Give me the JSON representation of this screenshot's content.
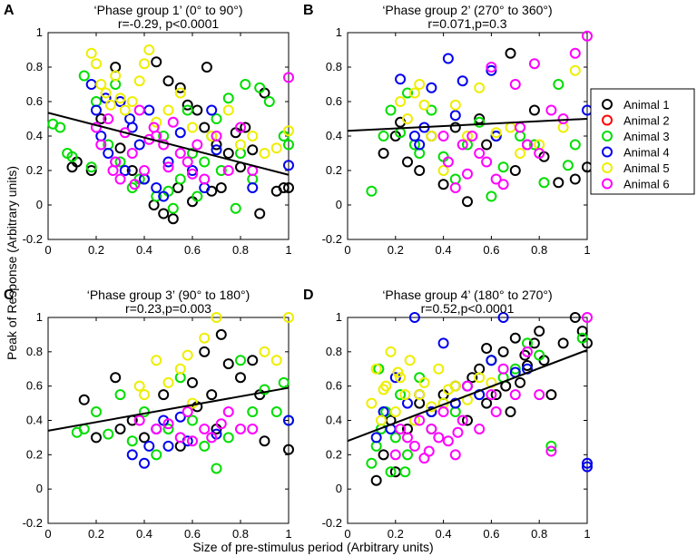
{
  "figure": {
    "ylabel": "Peak of Response (Arbitrary units)",
    "xlabel": "Size of pre-stimulus period (Arbitrary units)"
  },
  "legend": {
    "entries": [
      {
        "label": "Animal 1",
        "color": "#000000"
      },
      {
        "label": "Animal 2",
        "color": "#ff0000"
      },
      {
        "label": "Animal 3",
        "color": "#00dd00"
      },
      {
        "label": "Animal 4",
        "color": "#0000ee"
      },
      {
        "label": "Animal 5",
        "color": "#eeee00"
      },
      {
        "label": "Animal 6",
        "color": "#ff00ff"
      }
    ]
  },
  "chart_data": [
    {
      "type": "scatter",
      "letter": "A",
      "title": "‘Phase group 1’ (0° to 90°)",
      "stat": "r=-0.29, p<0.0001",
      "xlim": [
        0,
        1
      ],
      "ylim": [
        -0.2,
        1
      ],
      "xticks": [
        "0",
        "0.2",
        "0.4",
        "0.6",
        "0.8",
        "1"
      ],
      "yticks": [
        "-0.2",
        "0",
        "0.2",
        "0.4",
        "0.6",
        "0.8",
        "1"
      ],
      "fit": {
        "slope": -0.36,
        "intercept": 0.535
      },
      "series": [
        {
          "name": "Animal 1",
          "x": [
            0.45,
            0.5,
            0.55,
            0.58,
            0.62,
            0.65,
            0.7,
            0.75,
            0.78,
            0.82,
            0.85,
            0.9,
            0.95,
            0.98,
            1.0,
            0.4,
            0.35,
            0.3,
            0.28,
            0.22,
            0.18,
            0.1,
            0.12,
            0.48,
            0.52,
            0.6,
            0.68,
            0.72,
            0.8,
            0.88,
            0.44,
            0.54,
            0.66
          ],
          "y": [
            0.83,
            0.72,
            0.68,
            0.58,
            0.55,
            0.45,
            0.35,
            0.3,
            0.42,
            0.45,
            0.32,
            0.65,
            0.08,
            0.1,
            0.1,
            0.15,
            0.2,
            0.33,
            0.8,
            0.5,
            0.2,
            0.22,
            0.25,
            -0.05,
            -0.08,
            0.02,
            0.08,
            0.1,
            0.22,
            -0.05,
            0.0,
            0.1,
            0.8
          ]
        },
        {
          "name": "Animal 3",
          "x": [
            0.02,
            0.05,
            0.08,
            0.1,
            0.15,
            0.2,
            0.25,
            0.3,
            0.35,
            0.45,
            0.5,
            0.55,
            0.6,
            0.65,
            0.7,
            0.75,
            0.8,
            0.85,
            0.88,
            0.92,
            0.98,
            1.0,
            0.18,
            0.28,
            0.4,
            0.58,
            0.62,
            0.68,
            0.72,
            0.78,
            0.82,
            0.48,
            0.38,
            0.52
          ],
          "y": [
            0.47,
            0.45,
            0.3,
            0.28,
            0.75,
            0.6,
            0.35,
            0.25,
            0.1,
            0.05,
            0.08,
            0.15,
            0.3,
            0.25,
            0.5,
            0.62,
            0.3,
            0.15,
            0.68,
            0.6,
            0.4,
            0.35,
            0.22,
            0.7,
            0.15,
            0.55,
            0.05,
            0.4,
            0.2,
            -0.02,
            0.7,
            0.4,
            0.15,
            -0.02
          ]
        },
        {
          "name": "Animal 4",
          "x": [
            0.18,
            0.2,
            0.22,
            0.25,
            0.28,
            0.3,
            0.32,
            0.35,
            0.38,
            0.4,
            0.42,
            0.45,
            0.48,
            0.5,
            0.55,
            0.6,
            0.65,
            0.68,
            0.7,
            0.85,
            1.0,
            0.24,
            0.34
          ],
          "y": [
            0.7,
            0.55,
            0.4,
            0.3,
            0.25,
            0.6,
            0.2,
            0.45,
            0.35,
            0.15,
            0.55,
            0.1,
            0.05,
            0.25,
            0.42,
            0.2,
            0.1,
            0.55,
            0.32,
            0.1,
            0.23,
            0.62,
            0.5
          ]
        },
        {
          "name": "Animal 5",
          "x": [
            0.18,
            0.2,
            0.22,
            0.24,
            0.26,
            0.28,
            0.3,
            0.32,
            0.35,
            0.38,
            0.4,
            0.45,
            0.5,
            0.55,
            0.6,
            0.68,
            0.75,
            0.8,
            0.85,
            0.9,
            0.95,
            1.0,
            0.42
          ],
          "y": [
            0.88,
            0.82,
            0.7,
            0.65,
            0.58,
            0.75,
            0.62,
            0.55,
            0.6,
            0.72,
            0.82,
            0.48,
            0.55,
            0.65,
            0.45,
            0.4,
            0.55,
            0.35,
            0.4,
            0.3,
            0.33,
            0.43,
            0.9
          ]
        },
        {
          "name": "Animal 6",
          "x": [
            0.2,
            0.22,
            0.25,
            0.28,
            0.3,
            0.32,
            0.35,
            0.38,
            0.4,
            0.42,
            0.45,
            0.48,
            0.5,
            0.52,
            0.55,
            0.58,
            0.6,
            0.62,
            0.65,
            0.7,
            0.75,
            0.8,
            0.85,
            1.0,
            0.27,
            0.36,
            0.44
          ],
          "y": [
            0.45,
            0.35,
            0.5,
            0.25,
            0.15,
            0.42,
            0.3,
            0.55,
            0.2,
            0.38,
            0.4,
            0.35,
            0.22,
            0.48,
            0.3,
            0.25,
            0.18,
            0.35,
            0.15,
            0.4,
            0.2,
            0.45,
            0.2,
            0.74,
            0.2,
            0.12,
            0.45
          ]
        }
      ]
    },
    {
      "type": "scatter",
      "letter": "B",
      "title": "‘Phase group 2’ (270° to 360°)",
      "stat": "r=0.071,p=0.3",
      "xlim": [
        0,
        1
      ],
      "ylim": [
        -0.2,
        1
      ],
      "xticks": [
        "0",
        "0.2",
        "0.4",
        "0.6",
        "0.8",
        "1"
      ],
      "yticks": [
        "-0.2",
        "0",
        "0.2",
        "0.4",
        "0.6",
        "0.8",
        "1"
      ],
      "fit": {
        "slope": 0.07,
        "intercept": 0.43
      },
      "series": [
        {
          "name": "Animal 1",
          "x": [
            0.15,
            0.2,
            0.22,
            0.25,
            0.3,
            0.35,
            0.4,
            0.45,
            0.5,
            0.55,
            0.58,
            0.62,
            0.68,
            0.7,
            0.75,
            0.78,
            0.82,
            0.88,
            0.95,
            1.0
          ],
          "y": [
            0.3,
            0.4,
            0.48,
            0.25,
            0.2,
            0.4,
            0.12,
            0.45,
            0.02,
            0.5,
            0.35,
            0.4,
            0.88,
            0.2,
            0.35,
            0.55,
            0.28,
            0.13,
            0.15,
            0.22
          ]
        },
        {
          "name": "Animal 3",
          "x": [
            0.1,
            0.15,
            0.18,
            0.22,
            0.25,
            0.28,
            0.3,
            0.35,
            0.4,
            0.45,
            0.5,
            0.55,
            0.6,
            0.65,
            0.72,
            0.78,
            0.82,
            0.88,
            0.92,
            0.95
          ],
          "y": [
            0.08,
            0.4,
            0.55,
            0.42,
            0.65,
            0.35,
            0.3,
            0.55,
            0.28,
            0.15,
            0.35,
            0.48,
            0.05,
            0.22,
            0.4,
            0.35,
            0.13,
            0.7,
            0.23,
            0.35
          ]
        },
        {
          "name": "Animal 4",
          "x": [
            0.22,
            0.28,
            0.3,
            0.32,
            0.35,
            0.42,
            0.45,
            0.48,
            0.6,
            0.62,
            1.0
          ],
          "y": [
            0.73,
            0.4,
            0.35,
            0.45,
            0.68,
            0.85,
            0.52,
            0.72,
            0.78,
            0.4,
            0.55
          ]
        },
        {
          "name": "Animal 5",
          "x": [
            0.22,
            0.25,
            0.28,
            0.3,
            0.32,
            0.35,
            0.4,
            0.45,
            0.5,
            0.55,
            0.62,
            0.68,
            0.72,
            0.8,
            0.9,
            0.95
          ],
          "y": [
            0.6,
            0.5,
            0.65,
            0.7,
            0.58,
            0.4,
            0.2,
            0.58,
            0.4,
            0.68,
            0.42,
            0.45,
            0.3,
            0.35,
            0.45,
            0.78
          ]
        },
        {
          "name": "Animal 6",
          "x": [
            0.4,
            0.42,
            0.45,
            0.48,
            0.5,
            0.52,
            0.55,
            0.58,
            0.6,
            0.62,
            0.65,
            0.7,
            0.72,
            0.75,
            0.78,
            0.8,
            0.85,
            0.9,
            0.95,
            1.0
          ],
          "y": [
            0.4,
            0.25,
            0.1,
            0.35,
            0.18,
            0.4,
            0.3,
            0.25,
            0.8,
            0.15,
            0.12,
            0.7,
            0.45,
            0.35,
            0.82,
            0.3,
            0.55,
            0.5,
            0.88,
            0.98
          ]
        }
      ]
    },
    {
      "type": "scatter",
      "letter": "C",
      "title": "‘Phase group 3’ (90° to 180°)",
      "stat": "r=0.23,p=0.003",
      "xlim": [
        0,
        1
      ],
      "ylim": [
        -0.2,
        1
      ],
      "xticks": [
        "0",
        "0.2",
        "0.4",
        "0.6",
        "0.8",
        "1"
      ],
      "yticks": [
        "-0.2",
        "0",
        "0.2",
        "0.4",
        "0.6",
        "0.8",
        "1"
      ],
      "fit": {
        "slope": 0.25,
        "intercept": 0.34
      },
      "series": [
        {
          "name": "Animal 1",
          "x": [
            0.15,
            0.2,
            0.28,
            0.3,
            0.35,
            0.4,
            0.48,
            0.55,
            0.6,
            0.62,
            0.65,
            0.68,
            0.7,
            0.72,
            0.75,
            0.8,
            0.85,
            0.88,
            0.9,
            1.0
          ],
          "y": [
            0.52,
            0.3,
            0.65,
            0.35,
            0.4,
            0.3,
            0.55,
            0.25,
            0.62,
            0.48,
            0.8,
            0.55,
            0.35,
            0.9,
            0.73,
            0.65,
            0.75,
            0.55,
            0.28,
            0.23
          ]
        },
        {
          "name": "Animal 3",
          "x": [
            0.12,
            0.15,
            0.2,
            0.25,
            0.3,
            0.35,
            0.4,
            0.45,
            0.5,
            0.55,
            0.6,
            0.65,
            0.7,
            0.75,
            0.8,
            0.85,
            0.9,
            0.95,
            0.98,
            1.0
          ],
          "y": [
            0.33,
            0.35,
            0.45,
            0.32,
            0.55,
            0.28,
            0.45,
            0.2,
            0.35,
            0.65,
            0.4,
            0.25,
            0.12,
            0.3,
            0.75,
            0.45,
            0.58,
            0.45,
            0.62,
            0.4
          ]
        },
        {
          "name": "Animal 4",
          "x": [
            0.35,
            0.4,
            0.42,
            0.45,
            0.48,
            0.5,
            0.55,
            0.58,
            0.7,
            1.0
          ],
          "y": [
            0.2,
            0.15,
            0.25,
            0.35,
            0.4,
            0.25,
            0.42,
            0.28,
            0.32,
            0.4
          ]
        },
        {
          "name": "Animal 5",
          "x": [
            0.38,
            0.4,
            0.45,
            0.5,
            0.55,
            0.58,
            0.6,
            0.65,
            0.7,
            0.9,
            0.95,
            1.0
          ],
          "y": [
            0.6,
            0.55,
            0.75,
            0.62,
            0.7,
            0.78,
            0.5,
            0.88,
            1.0,
            0.8,
            0.75,
            1.0
          ]
        },
        {
          "name": "Animal 6",
          "x": [
            0.38,
            0.45,
            0.5,
            0.55,
            0.58,
            0.6,
            0.65,
            0.68,
            0.72,
            0.75,
            0.8,
            0.85
          ],
          "y": [
            0.4,
            0.35,
            0.38,
            0.3,
            0.45,
            0.28,
            0.35,
            0.3,
            0.38,
            0.45,
            0.35,
            0.35
          ]
        }
      ]
    },
    {
      "type": "scatter",
      "letter": "D",
      "title": "‘Phase group 4’ (180° to 270°)",
      "stat": "r=0.52,p<0.0001",
      "xlim": [
        0,
        1
      ],
      "ylim": [
        -0.2,
        1
      ],
      "xticks": [
        "0",
        "0.2",
        "0.4",
        "0.6",
        "0.8",
        "1"
      ],
      "yticks": [
        "-0.2",
        "0",
        "0.2",
        "0.4",
        "0.6",
        "0.8",
        "1"
      ],
      "fit": {
        "slope": 0.53,
        "intercept": 0.28
      },
      "series": [
        {
          "name": "Animal 1",
          "x": [
            0.12,
            0.15,
            0.18,
            0.2,
            0.25,
            0.3,
            0.35,
            0.4,
            0.45,
            0.5,
            0.52,
            0.55,
            0.58,
            0.6,
            0.62,
            0.65,
            0.68,
            0.7,
            0.72,
            0.75,
            0.78,
            0.8,
            0.82,
            0.85,
            0.9,
            0.95,
            0.98,
            1.0,
            0.58,
            0.66,
            0.74
          ],
          "y": [
            0.05,
            0.2,
            0.4,
            0.1,
            0.35,
            0.5,
            0.45,
            0.55,
            0.6,
            0.4,
            0.65,
            0.7,
            0.5,
            0.75,
            0.55,
            0.8,
            0.45,
            0.88,
            0.62,
            0.72,
            0.85,
            0.92,
            0.75,
            0.55,
            0.85,
            1.0,
            0.92,
            0.85,
            0.82,
            0.6,
            0.78
          ]
        },
        {
          "name": "Animal 3",
          "x": [
            0.1,
            0.12,
            0.14,
            0.16,
            0.18,
            0.2,
            0.22,
            0.25,
            0.28,
            0.3,
            0.35,
            0.4,
            0.45,
            0.5,
            0.55,
            0.6,
            0.65,
            0.7,
            0.75,
            0.8,
            0.85,
            0.98,
            0.13,
            0.24
          ],
          "y": [
            0.15,
            0.25,
            0.35,
            0.45,
            0.1,
            0.3,
            0.55,
            0.2,
            0.4,
            0.65,
            0.35,
            0.5,
            0.45,
            0.6,
            0.55,
            0.75,
            0.65,
            0.7,
            0.85,
            0.78,
            0.25,
            0.88,
            0.7,
            0.1
          ]
        },
        {
          "name": "Animal 4",
          "x": [
            0.12,
            0.15,
            0.18,
            0.2,
            0.25,
            0.28,
            0.3,
            0.35,
            0.4,
            0.45,
            0.5,
            0.55,
            0.6,
            0.65,
            0.7,
            0.75,
            1.0,
            1.0
          ],
          "y": [
            0.3,
            0.45,
            0.35,
            0.65,
            0.5,
            1.0,
            0.55,
            0.45,
            0.85,
            0.5,
            0.6,
            0.55,
            0.75,
            1.0,
            0.68,
            0.7,
            0.13,
            0.15
          ]
        },
        {
          "name": "Animal 5",
          "x": [
            0.1,
            0.12,
            0.14,
            0.16,
            0.18,
            0.2,
            0.22,
            0.24,
            0.26,
            0.28,
            0.3,
            0.32,
            0.35,
            0.38,
            0.4,
            0.42,
            0.45,
            0.5,
            0.55,
            0.6,
            0.15,
            0.21
          ],
          "y": [
            0.5,
            0.7,
            0.4,
            0.6,
            0.8,
            0.45,
            0.65,
            0.55,
            0.75,
            0.4,
            0.55,
            0.62,
            0.48,
            0.7,
            0.5,
            0.58,
            0.6,
            0.52,
            0.65,
            0.62,
            0.58,
            0.68
          ]
        },
        {
          "name": "Animal 6",
          "x": [
            0.2,
            0.22,
            0.25,
            0.28,
            0.3,
            0.32,
            0.35,
            0.38,
            0.4,
            0.42,
            0.45,
            0.48,
            0.5,
            0.55,
            0.6,
            0.62,
            0.65,
            0.7,
            0.75,
            0.8,
            0.85,
            1.0,
            0.34,
            0.46
          ],
          "y": [
            0.2,
            0.35,
            0.3,
            0.25,
            0.4,
            0.18,
            0.35,
            0.3,
            0.45,
            0.28,
            0.2,
            0.4,
            0.6,
            0.35,
            0.55,
            0.45,
            0.7,
            0.55,
            0.8,
            0.55,
            0.22,
            1.0,
            0.22,
            0.33
          ]
        }
      ]
    }
  ]
}
